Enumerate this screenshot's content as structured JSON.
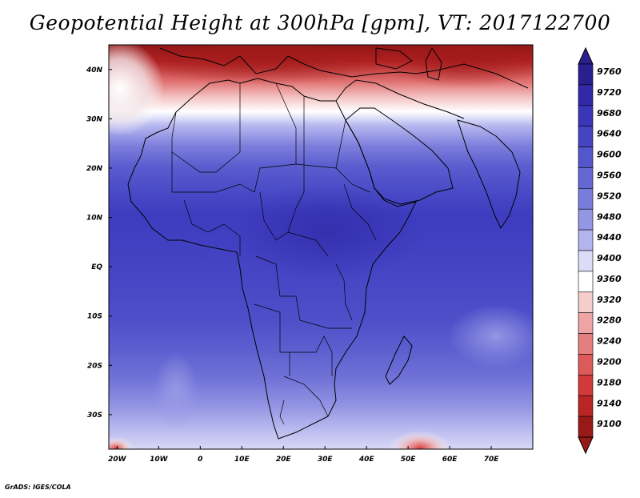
{
  "title": "Geopotential Height at 300hPa [gpm], VT: 2017122700",
  "footer": "GrADS: IGES/COLA",
  "map": {
    "lon_range": [
      -22,
      80
    ],
    "lat_range": [
      -37,
      45
    ],
    "x_ticks": [
      "20W",
      "10W",
      "0",
      "10E",
      "20E",
      "30E",
      "40E",
      "50E",
      "60E",
      "70E"
    ],
    "y_ticks": [
      "40N",
      "30N",
      "20N",
      "10N",
      "EQ",
      "10S",
      "20S",
      "30S"
    ]
  },
  "colorbar": {
    "levels": [
      "9760",
      "9720",
      "9680",
      "9640",
      "9600",
      "9560",
      "9520",
      "9480",
      "9440",
      "9400",
      "9360",
      "9320",
      "9280",
      "9240",
      "9200",
      "9180",
      "9140",
      "9100"
    ],
    "colors": [
      "#2a1f8f",
      "#3328a8",
      "#3b35b8",
      "#4644c2",
      "#5456cb",
      "#6568d3",
      "#7a7cdb",
      "#9496e4",
      "#b3b4ee",
      "#dcdcf8",
      "#ffffff",
      "#f6cdcd",
      "#eea4a4",
      "#e57f7f",
      "#dc5a5a",
      "#d03a3a",
      "#b82626",
      "#991818"
    ],
    "colors_top_to_bottom": true
  }
}
